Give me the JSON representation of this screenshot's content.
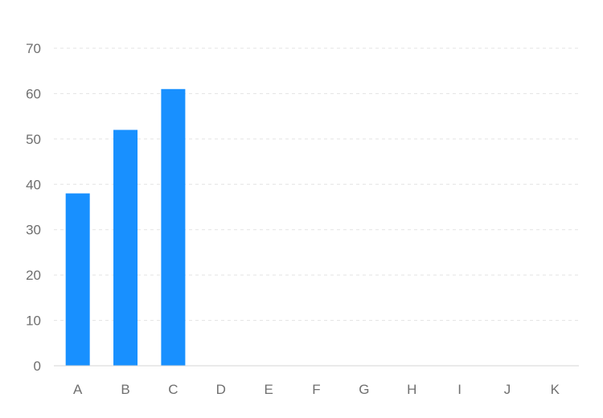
{
  "chart_data": {
    "type": "bar",
    "title": "",
    "xlabel": "",
    "ylabel": "",
    "categories": [
      "A",
      "B",
      "C",
      "D",
      "E",
      "F",
      "G",
      "H",
      "I",
      "J",
      "K"
    ],
    "values": [
      38,
      52,
      61,
      null,
      null,
      null,
      null,
      null,
      null,
      null,
      null
    ],
    "ylim": [
      0,
      70
    ],
    "yticks": [
      0,
      10,
      20,
      30,
      40,
      50,
      60,
      70
    ],
    "grid": true,
    "bar_color": "#1890ff"
  }
}
